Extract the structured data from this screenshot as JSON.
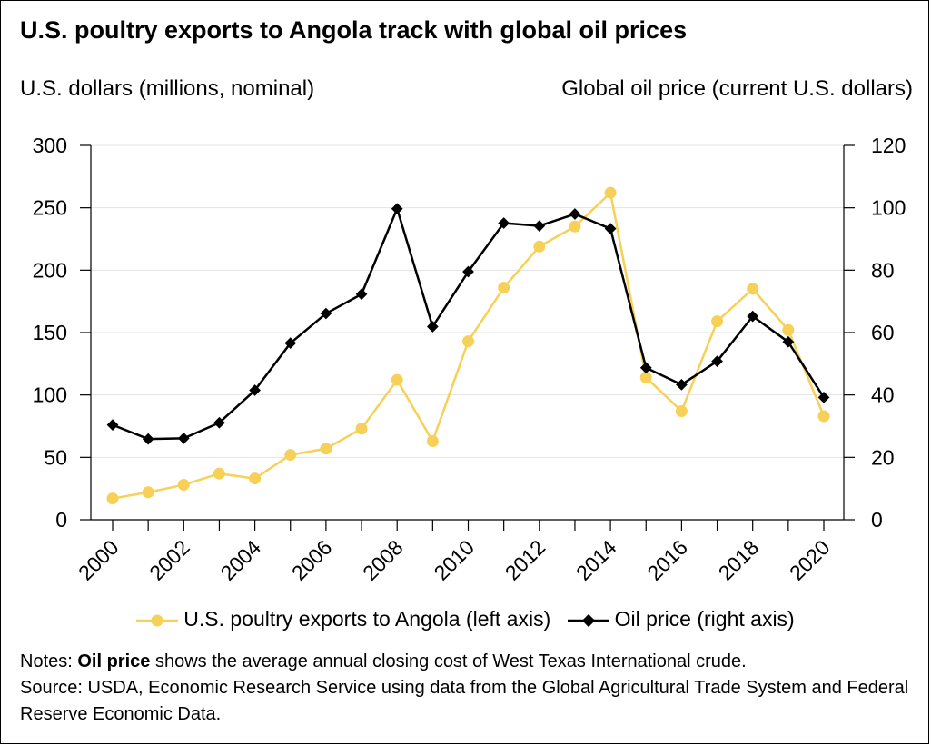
{
  "title": "U.S. poultry exports to Angola track with global oil prices",
  "left_axis_label": "U.S. dollars (millions, nominal)",
  "right_axis_label": "Global oil price (current U.S. dollars)",
  "colors": {
    "poultry": "#f7d157",
    "oil": "#000000",
    "grid": "#e3e3e3"
  },
  "notes": {
    "prefix": "Notes: ",
    "bold": "Oil price",
    "text": " shows the average annual closing cost of West Texas International crude.",
    "source": "Source: USDA, Economic Research Service using data from the Global Agricultural Trade System and Federal Reserve Economic Data."
  },
  "chart_data": {
    "type": "line",
    "x": [
      2000,
      2001,
      2002,
      2003,
      2004,
      2005,
      2006,
      2007,
      2008,
      2009,
      2010,
      2011,
      2012,
      2013,
      2014,
      2015,
      2016,
      2017,
      2018,
      2019,
      2020
    ],
    "x_tick_labels": [
      "2000",
      "2002",
      "2004",
      "2006",
      "2008",
      "2010",
      "2012",
      "2014",
      "2016",
      "2018",
      "2020"
    ],
    "left_y_ticks": [
      "0",
      "50",
      "100",
      "150",
      "200",
      "250",
      "300"
    ],
    "right_y_ticks": [
      "0",
      "20",
      "40",
      "60",
      "80",
      "100",
      "120"
    ],
    "ylim_left": [
      0,
      300
    ],
    "ylim_right": [
      0,
      120
    ],
    "grid": "horizontal",
    "legend_position": "bottom",
    "series": [
      {
        "name": "U.S. poultry exports to Angola (left axis)",
        "axis": "left",
        "marker": "circle",
        "values": [
          17,
          22,
          28,
          37,
          33,
          52,
          57,
          73,
          112,
          63,
          143,
          186,
          219,
          235,
          262,
          114,
          87,
          159,
          185,
          152,
          83
        ]
      },
      {
        "name": "Oil price (right axis)",
        "axis": "right",
        "marker": "diamond",
        "values": [
          30.4,
          25.9,
          26.1,
          31.1,
          41.5,
          56.6,
          66.1,
          72.3,
          99.7,
          61.9,
          79.5,
          95.1,
          94.2,
          98.0,
          93.3,
          48.7,
          43.3,
          50.8,
          65.2,
          57.0,
          39.2
        ]
      }
    ]
  }
}
